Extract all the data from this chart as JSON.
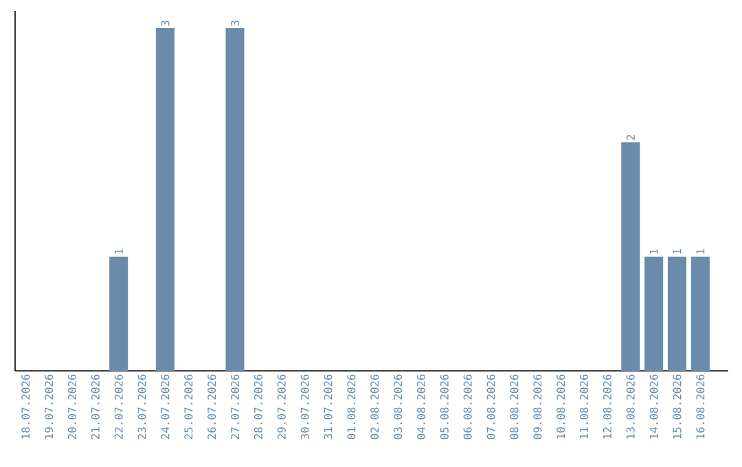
{
  "chart_data": {
    "type": "bar",
    "categories": [
      "18.07.2026",
      "19.07.2026",
      "20.07.2026",
      "21.07.2026",
      "22.07.2026",
      "23.07.2026",
      "24.07.2026",
      "25.07.2026",
      "26.07.2026",
      "27.07.2026",
      "28.07.2026",
      "29.07.2026",
      "30.07.2026",
      "31.07.2026",
      "01.08.2026",
      "02.08.2026",
      "03.08.2026",
      "04.08.2026",
      "05.08.2026",
      "06.08.2026",
      "07.08.2026",
      "08.08.2026",
      "09.08.2026",
      "10.08.2026",
      "11.08.2026",
      "12.08.2026",
      "13.08.2026",
      "14.08.2026",
      "15.08.2026",
      "16.08.2026"
    ],
    "values": [
      0,
      0,
      0,
      0,
      1,
      0,
      3,
      0,
      0,
      3,
      0,
      0,
      0,
      0,
      0,
      0,
      0,
      0,
      0,
      0,
      0,
      0,
      0,
      0,
      0,
      0,
      2,
      1,
      1,
      1
    ],
    "value_labels": [
      null,
      null,
      null,
      null,
      "1",
      null,
      "3",
      null,
      null,
      "3",
      null,
      null,
      null,
      null,
      null,
      null,
      null,
      null,
      null,
      null,
      null,
      null,
      null,
      null,
      null,
      null,
      "2",
      "1",
      "1",
      "1"
    ],
    "color": "#6a8caa",
    "ylim": [
      0,
      3.15
    ],
    "tick_labels": "x"
  }
}
